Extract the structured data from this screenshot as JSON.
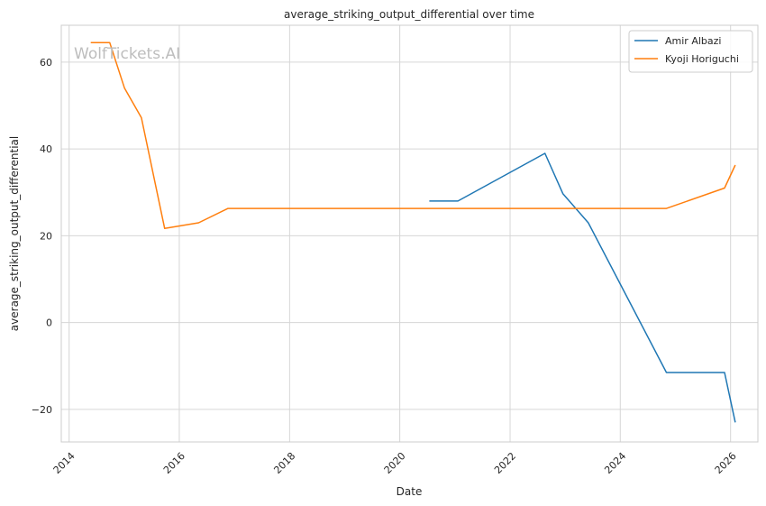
{
  "chart_data": {
    "type": "line",
    "title": "average_striking_output_differential over time",
    "xlabel": "Date",
    "ylabel": "average_striking_output_differential",
    "watermark": "WolfTickets.AI",
    "xlim": [
      "2013-11-10",
      "2026-07-01"
    ],
    "ylim": [
      -27.5,
      68.5
    ],
    "x_ticks": [
      "2014-01-01",
      "2016-01-01",
      "2018-01-01",
      "2020-01-01",
      "2022-01-01",
      "2024-01-01",
      "2026-01-01"
    ],
    "x_tick_labels": [
      "2014",
      "2016",
      "2018",
      "2020",
      "2022",
      "2024",
      "2026"
    ],
    "y_ticks": [
      -20,
      0,
      20,
      40,
      60
    ],
    "y_tick_labels": [
      "−20",
      "0",
      "20",
      "40",
      "60"
    ],
    "grid": true,
    "legend_position": "top-right",
    "series": [
      {
        "name": "Amir Albazi",
        "color": "#1f77b4",
        "points": [
          {
            "x": "2020-07-15",
            "y": 28
          },
          {
            "x": "2021-01-20",
            "y": 28
          },
          {
            "x": "2022-08-20",
            "y": 39
          },
          {
            "x": "2022-12-17",
            "y": 29.7
          },
          {
            "x": "2023-06-03",
            "y": 23
          },
          {
            "x": "2024-11-02",
            "y": -11.5
          },
          {
            "x": "2025-11-22",
            "y": -11.5
          },
          {
            "x": "2026-02-01",
            "y": -23
          }
        ]
      },
      {
        "name": "Kyoji Horiguchi",
        "color": "#ff7f0e",
        "points": [
          {
            "x": "2014-05-24",
            "y": 64.5
          },
          {
            "x": "2014-09-27",
            "y": 64.5
          },
          {
            "x": "2015-01-03",
            "y": 54
          },
          {
            "x": "2015-04-25",
            "y": 47.2
          },
          {
            "x": "2015-09-26",
            "y": 21.7
          },
          {
            "x": "2016-05-08",
            "y": 23
          },
          {
            "x": "2016-11-19",
            "y": 26.3
          },
          {
            "x": "2024-11-02",
            "y": 26.3
          },
          {
            "x": "2025-11-22",
            "y": 31
          },
          {
            "x": "2026-02-01",
            "y": 36.3
          }
        ]
      }
    ]
  }
}
